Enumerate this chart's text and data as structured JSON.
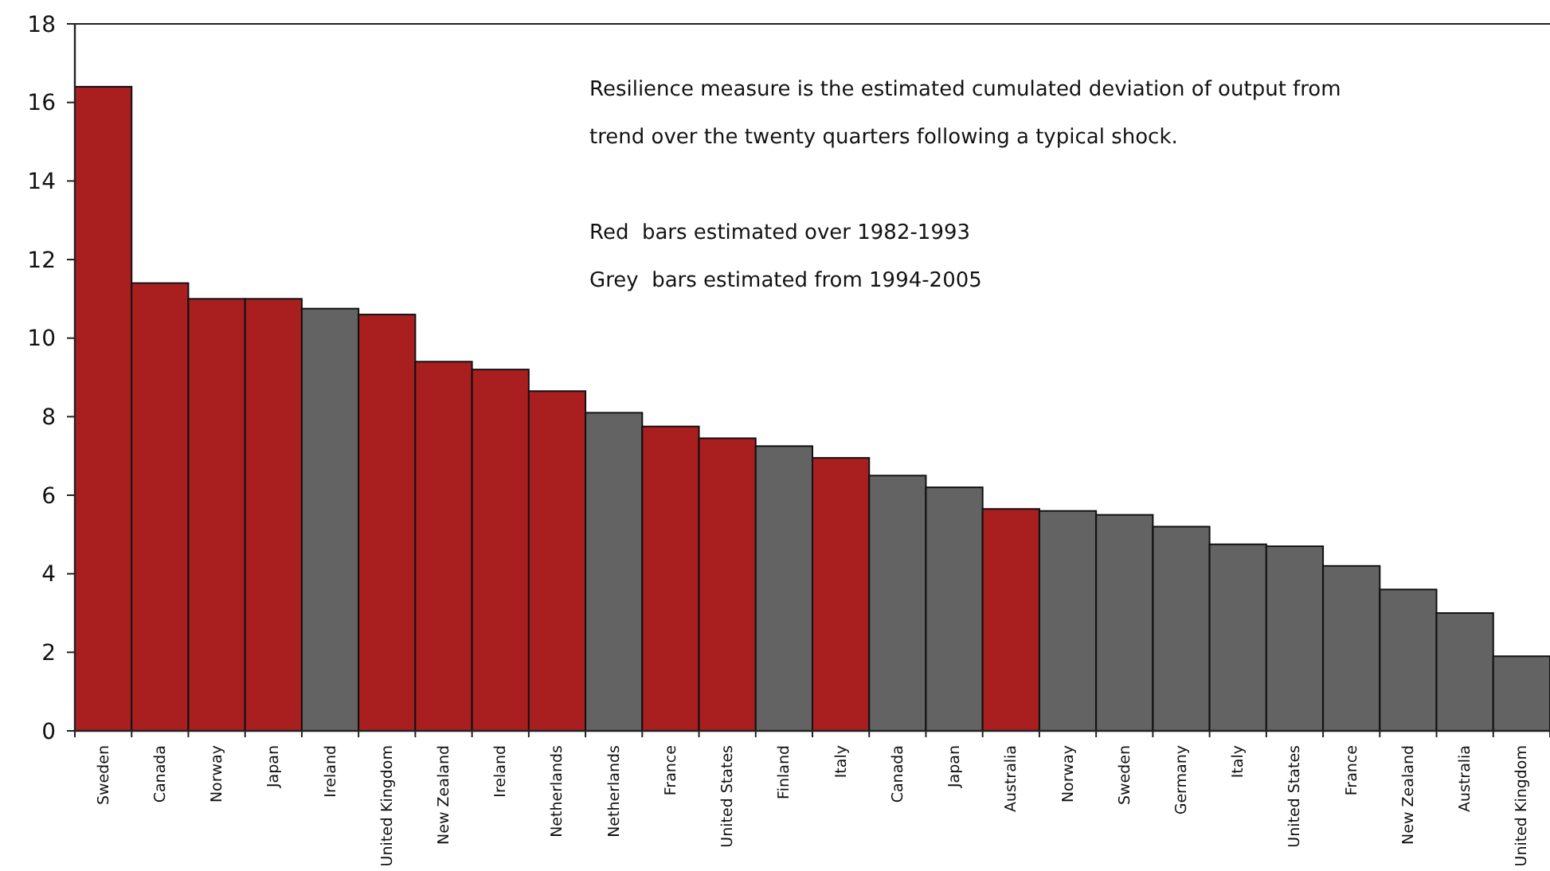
{
  "chart_data": {
    "type": "bar",
    "categories": [
      "Sweden",
      "Canada",
      "Norway",
      "Japan",
      "Ireland",
      "United Kingdom",
      "New Zealand",
      "Ireland",
      "Netherlands",
      "Netherlands",
      "France",
      "United States",
      "Finland",
      "Italy",
      "Canada",
      "Japan",
      "Australia",
      "Norway",
      "Sweden",
      "Germany",
      "Italy",
      "United States",
      "France",
      "New Zealand",
      "Australia",
      "United Kingdom"
    ],
    "values": [
      16.4,
      11.4,
      11.0,
      11.0,
      10.75,
      10.6,
      9.4,
      9.2,
      8.65,
      8.1,
      7.75,
      7.45,
      7.25,
      6.95,
      6.5,
      6.2,
      5.65,
      5.6,
      5.5,
      5.2,
      4.75,
      4.7,
      4.2,
      3.6,
      3.0,
      1.9
    ],
    "colors": [
      "#a91f1f",
      "#a91f1f",
      "#a91f1f",
      "#a91f1f",
      "#636363",
      "#a91f1f",
      "#a91f1f",
      "#a91f1f",
      "#a91f1f",
      "#636363",
      "#a91f1f",
      "#a91f1f",
      "#636363",
      "#a91f1f",
      "#636363",
      "#636363",
      "#a91f1f",
      "#636363",
      "#636363",
      "#636363",
      "#636363",
      "#636363",
      "#636363",
      "#636363",
      "#636363",
      "#636363"
    ],
    "ylim": [
      0,
      18
    ],
    "yticks": [
      0,
      2,
      4,
      6,
      8,
      10,
      12,
      14,
      16,
      18
    ],
    "annotations": [
      "Resilience measure is the estimated cumulated deviation of output from trend over the twenty quarters following a typical shock.",
      "Red  bars estimated over 1982-1993",
      "Grey  bars estimated from 1994-2005"
    ],
    "grid": false
  }
}
